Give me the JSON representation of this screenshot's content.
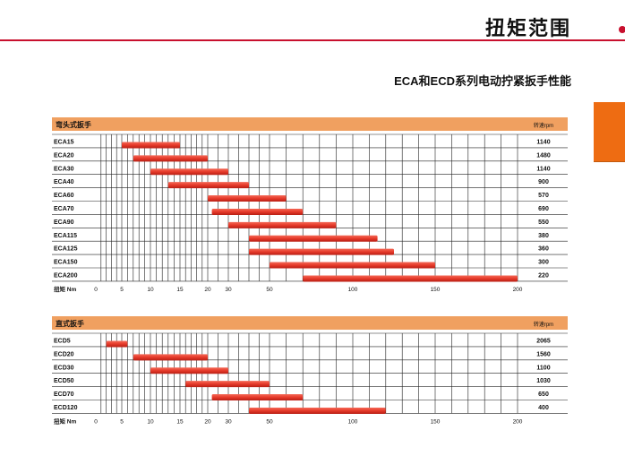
{
  "header": {
    "page_title": "扭矩范围",
    "subtitle": "ECA和ECD系列电动拧紧扳手性能"
  },
  "colors": {
    "accent_red": "#c8102e",
    "section_header_orange": "#f0a060",
    "bar_red": "#e63a2a",
    "side_tab_orange": "#ee6c12"
  },
  "chart_data": [
    {
      "type": "bar",
      "orientation": "horizontal-range",
      "title": "弯头式扳手",
      "speed_header": "转速rpm",
      "xlabel": "扭矩 Nm",
      "x_ticks": [
        "0",
        "5",
        "10",
        "15",
        "20",
        "30",
        "50",
        "100",
        "150",
        "200"
      ],
      "categories": [
        "ECA15",
        "ECA20",
        "ECA30",
        "ECA40",
        "ECA60",
        "ECA70",
        "ECA90",
        "ECA115",
        "ECA125",
        "ECA150",
        "ECA200"
      ],
      "ranges": [
        [
          5,
          15
        ],
        [
          7,
          20
        ],
        [
          10,
          30
        ],
        [
          13,
          40
        ],
        [
          20,
          60
        ],
        [
          22,
          70
        ],
        [
          30,
          90
        ],
        [
          40,
          115
        ],
        [
          40,
          125
        ],
        [
          50,
          150
        ],
        [
          70,
          200
        ]
      ],
      "speeds": [
        "1140",
        "1480",
        "1140",
        "900",
        "570",
        "690",
        "550",
        "380",
        "360",
        "300",
        "220"
      ]
    },
    {
      "type": "bar",
      "orientation": "horizontal-range",
      "title": "直式扳手",
      "speed_header": "转速rpm",
      "xlabel": "扭矩 Nm",
      "x_ticks": [
        "0",
        "5",
        "10",
        "15",
        "20",
        "30",
        "50",
        "100",
        "150",
        "200"
      ],
      "categories": [
        "ECD5",
        "ECD20",
        "ECD30",
        "ECD50",
        "ECD70",
        "ECD120"
      ],
      "ranges": [
        [
          2,
          6
        ],
        [
          7,
          20
        ],
        [
          10,
          30
        ],
        [
          16,
          50
        ],
        [
          22,
          70
        ],
        [
          40,
          120
        ]
      ],
      "speeds": [
        "2065",
        "1560",
        "1100",
        "1030",
        "650",
        "400"
      ]
    }
  ]
}
